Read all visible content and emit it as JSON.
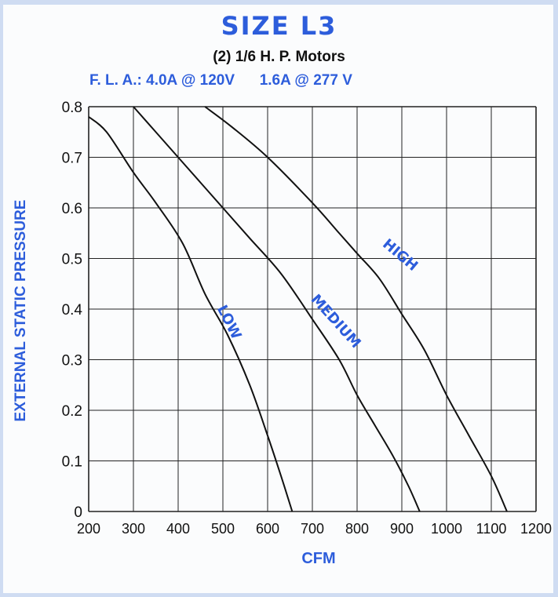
{
  "header": {
    "title": "SIZE L3",
    "subtitle": "(2) 1/6 H. P. Motors",
    "fla_left": "F. L. A.: 4.0A @ 120V",
    "fla_right": "1.6A @ 277 V"
  },
  "colors": {
    "accent": "#2d5ddb",
    "curve": "#111111",
    "grid": "#222222"
  },
  "chart_data": {
    "type": "line",
    "xlabel": "CFM",
    "ylabel": "EXTERNAL STATIC PRESSURE",
    "xlim": [
      200,
      1200
    ],
    "ylim": [
      0,
      0.8
    ],
    "x_ticks": [
      200,
      300,
      400,
      500,
      600,
      700,
      800,
      900,
      1000,
      1100,
      1200
    ],
    "y_ticks": [
      0,
      0.1,
      0.2,
      0.3,
      0.4,
      0.5,
      0.6,
      0.7,
      0.8
    ],
    "x_tick_labels": [
      "200",
      "300",
      "400",
      "500",
      "600",
      "700",
      "800",
      "900",
      "1000",
      "1100",
      "1200"
    ],
    "y_tick_labels": [
      "0",
      "0.1",
      "0.2",
      "0.3",
      "0.4",
      "0.5",
      "0.6",
      "0.7",
      "0.8"
    ],
    "grid": true,
    "series": [
      {
        "name": "LOW",
        "x": [
          200,
          240,
          300,
          350,
          410,
          460,
          510,
          560,
          600,
          630,
          655
        ],
        "y": [
          0.78,
          0.75,
          0.67,
          0.61,
          0.53,
          0.43,
          0.35,
          0.25,
          0.15,
          0.07,
          0
        ]
      },
      {
        "name": "MEDIUM",
        "x": [
          300,
          350,
          400,
          450,
          500,
          560,
          630,
          700,
          760,
          800,
          840,
          880,
          915,
          940
        ],
        "y": [
          0.8,
          0.75,
          0.7,
          0.65,
          0.6,
          0.54,
          0.47,
          0.38,
          0.3,
          0.23,
          0.17,
          0.11,
          0.05,
          0
        ]
      },
      {
        "name": "HIGH",
        "x": [
          460,
          520,
          600,
          700,
          760,
          800,
          850,
          900,
          950,
          1000,
          1050,
          1100,
          1135
        ],
        "y": [
          0.8,
          0.76,
          0.7,
          0.61,
          0.55,
          0.51,
          0.46,
          0.39,
          0.32,
          0.23,
          0.15,
          0.07,
          0
        ]
      }
    ]
  }
}
